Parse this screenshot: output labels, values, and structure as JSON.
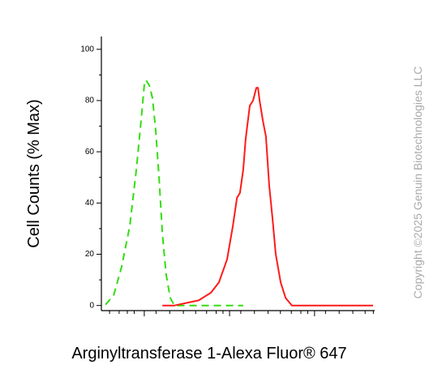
{
  "chart_data": {
    "type": "line",
    "y_label": "Cell Counts (% Max)",
    "x_label": "Arginyltransferase 1-Alexa Fluor® 647",
    "watermark": "Copyright ©2025 Genuin Biotechnologies LLC",
    "xlim": [
      0,
      1000
    ],
    "ylim": [
      -2,
      105
    ],
    "yticks": [
      0,
      20,
      40,
      60,
      80,
      100
    ],
    "yticks_minor": [
      10,
      30,
      50,
      70,
      90
    ],
    "xticks": [
      157,
      469,
      780
    ],
    "xticks_minor": [
      30,
      65,
      95,
      120,
      200,
      250,
      300,
      345,
      385,
      420,
      445,
      510,
      560,
      610,
      655,
      695,
      730,
      755,
      820,
      870,
      920,
      965,
      995
    ],
    "series": [
      {
        "color": "#33dd11",
        "dash": true,
        "x": [
          15,
          45,
          74,
          104,
          128,
          145,
          157,
          163,
          175,
          187,
          199,
          211,
          223,
          237,
          252,
          267,
          519
        ],
        "values": [
          0.3,
          4,
          15,
          31,
          53,
          72,
          86,
          88,
          86,
          81,
          68,
          50,
          28,
          12,
          3,
          0,
          0
        ]
      },
      {
        "color": "#ff1a1a",
        "dash": false,
        "x": [
          223,
          267,
          312,
          356,
          401,
          430,
          460,
          481,
          496,
          507,
          519,
          528,
          543,
          555,
          567,
          573,
          579,
          591,
          602,
          614,
          626,
          638,
          656,
          674,
          697,
          816,
          994
        ],
        "values": [
          0,
          0,
          1,
          2,
          5,
          9,
          18,
          31,
          42,
          44,
          53,
          65,
          78,
          80,
          85,
          85,
          80,
          72,
          66,
          47,
          34,
          20,
          9,
          3,
          0,
          0,
          0
        ]
      }
    ]
  }
}
